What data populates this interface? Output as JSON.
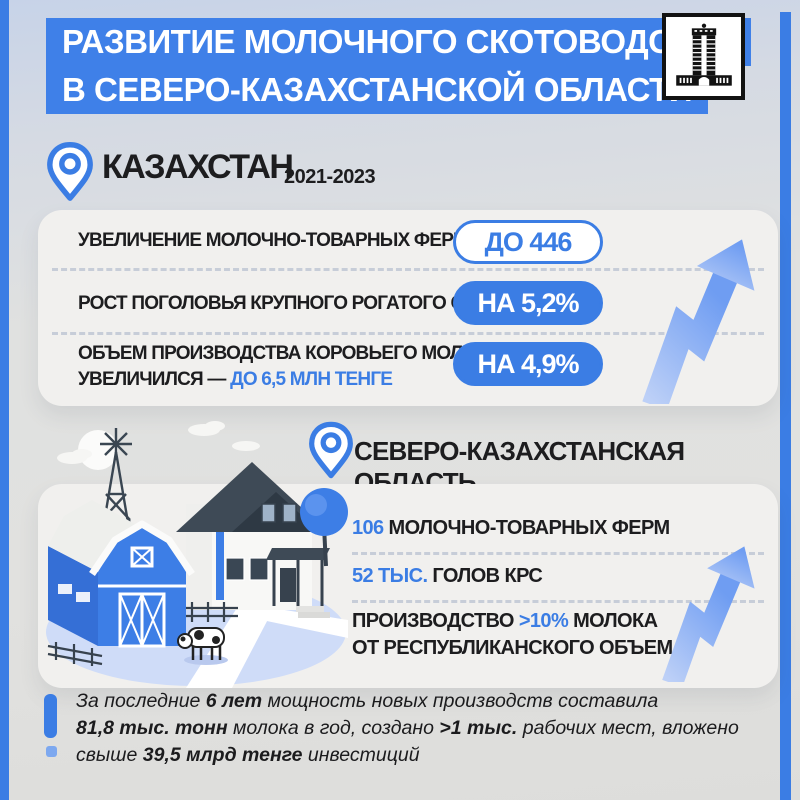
{
  "colors": {
    "blue": "#3b7de4",
    "banner_blue": "#3f80e8",
    "dark_text": "#1d1d1f",
    "card_bg": "#f1f0ee",
    "arrow_light": "#bcd0f7",
    "arrow_deep": "#6f9df2"
  },
  "header": {
    "title_line1": "РАЗВИТИЕ МОЛОЧНОГО СКОТОВОДСТВА",
    "title_line2": "В СЕВЕРО-КАЗАХСТАНСКОЙ ОБЛАСТИ",
    "logo_icon": "government-building-icon"
  },
  "kazakhstan": {
    "pin_icon": "location-pin-icon",
    "title": "КАЗАХСТАН",
    "period": "2021-2023",
    "rows": [
      {
        "label": [
          {
            "text": "УВЕЛИЧЕНИЕ МОЛОЧНО-ТОВАРНЫХ ФЕРМ",
            "style": "dark"
          }
        ],
        "badge": "ДО 446"
      },
      {
        "label": [
          {
            "text": "РОСТ ПОГОЛОВЬЯ КРУПНОГО РОГАТОГО СКОТА",
            "style": "dark"
          }
        ],
        "badge": "НА 5,2%"
      },
      {
        "label": [
          {
            "text": "ОБЪЕМ ПРОИЗВОДСТВА КОРОВЬЕГО МОЛОКА\nУВЕЛИЧИЛСЯ — ",
            "style": "dark"
          },
          {
            "text": "ДО 6,5 МЛН ТЕНГЕ",
            "style": "blue"
          }
        ],
        "badge": "НА 4,9%"
      }
    ]
  },
  "region": {
    "pin_icon": "location-pin-icon",
    "title": "СЕВЕРО-КАЗАХСТАНСКАЯ ОБЛАСТЬ",
    "illustration": "farm-with-barn-house-windmill-cow",
    "stats": [
      {
        "segments": [
          {
            "text": "106 ",
            "style": "blue"
          },
          {
            "text": "МОЛОЧНО-ТОВАРНЫХ ФЕРМ",
            "style": "dark"
          }
        ]
      },
      {
        "segments": [
          {
            "text": "52 ТЫС. ",
            "style": "blue"
          },
          {
            "text": "ГОЛОВ КРС",
            "style": "dark"
          }
        ]
      },
      {
        "segments": [
          {
            "text": "ПРОИЗВОДСТВО ",
            "style": "dark"
          },
          {
            "text": ">10%",
            "style": "blue"
          },
          {
            "text": " МОЛОКА\nОТ РЕСПУБЛИКАНСКОГО ОБЪЕМА",
            "style": "dark"
          }
        ]
      }
    ]
  },
  "footer": {
    "icon": "exclamation-mark-icon",
    "segments": [
      {
        "text": "За последние ",
        "style": "n"
      },
      {
        "text": "6 лет",
        "style": "b"
      },
      {
        "text": " мощность новых производств составила\n",
        "style": "n"
      },
      {
        "text": "81,8 тыс. тонн",
        "style": "b"
      },
      {
        "text": " молока в год, создано ",
        "style": "n"
      },
      {
        "text": ">1 тыс.",
        "style": "b"
      },
      {
        "text": " рабочих мест, вложено\nсвыше ",
        "style": "n"
      },
      {
        "text": "39,5 млрд тенге",
        "style": "b"
      },
      {
        "text": " инвестиций",
        "style": "n"
      }
    ]
  }
}
